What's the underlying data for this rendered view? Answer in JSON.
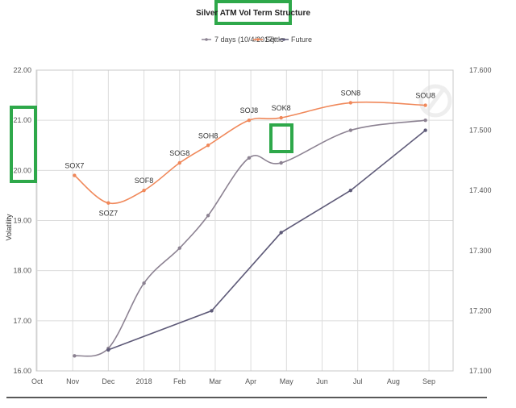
{
  "chart_data": {
    "type": "line",
    "title": "Silver ATM Vol Term Structure",
    "xlabel": "",
    "ylabel": "Volatility",
    "y_left": {
      "ticks": [
        "16.00",
        "17.00",
        "18.00",
        "19.00",
        "20.00",
        "21.00",
        "22.00"
      ],
      "ylim": [
        16,
        22
      ]
    },
    "y_right": {
      "ticks": [
        "17.100",
        "17.200",
        "17.300",
        "17.400",
        "17.500",
        "17.600"
      ],
      "ylim": [
        17.1,
        17.6
      ]
    },
    "x_ticks": [
      "Oct",
      "Nov",
      "Dec",
      "2018",
      "Feb",
      "Mar",
      "Apr",
      "May",
      "Jun",
      "Jul",
      "Aug",
      "Sep"
    ],
    "legend": [
      "7 days (10/4/2017)",
      "Settle",
      "Future"
    ],
    "grid": true,
    "series": [
      {
        "name": "Settle",
        "axis": "left",
        "color": "#f0885a",
        "x": [
          1.05,
          2.0,
          3.0,
          4.0,
          4.8,
          5.95,
          6.85,
          8.8,
          10.9
        ],
        "values": [
          19.9,
          19.35,
          19.6,
          20.15,
          20.5,
          21.0,
          21.05,
          21.35,
          21.3
        ],
        "labels": [
          "SOX7",
          "SOZ7",
          "SOF8",
          "SOG8",
          "SOH8",
          "SOJ8",
          "SOK8",
          "SON8",
          "SOU8"
        ]
      },
      {
        "name": "7 days (10/4/2017)",
        "axis": "left",
        "color": "#8c8292",
        "x": [
          1.05,
          2.0,
          3.0,
          4.0,
          4.8,
          5.95,
          6.85,
          8.8,
          10.9
        ],
        "values": [
          16.3,
          16.45,
          17.75,
          18.45,
          19.1,
          20.25,
          20.15,
          20.8,
          21.0
        ]
      },
      {
        "name": "Future",
        "axis": "right",
        "color": "#5e5a78",
        "x": [
          2.0,
          4.9,
          6.85,
          8.8,
          10.9
        ],
        "values": [
          17.135,
          17.2,
          17.33,
          17.4,
          17.5
        ]
      }
    ],
    "highlighted": [
      "title",
      "left-axis-20-21",
      "SOK8"
    ]
  },
  "colors": {
    "highlight": "#2ea84a",
    "grid": "#dcdcdc"
  }
}
